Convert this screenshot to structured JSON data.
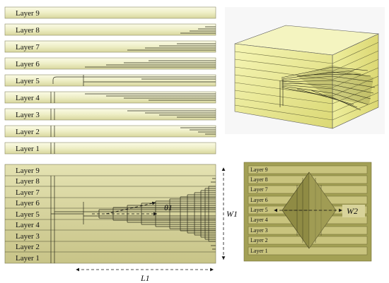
{
  "top_layers": [
    "Layer 9",
    "Layer 8",
    "Layer 7",
    "Layer 6",
    "Layer 5",
    "Layer 4",
    "Layer 3",
    "Layer 2",
    "Layer 1"
  ],
  "stack_layers": [
    "Layer 9",
    "Layer 8",
    "Layer 7",
    "Layer 6",
    "Layer 5",
    "Layer 4",
    "Layer 3",
    "Layer 2",
    "Layer 1"
  ],
  "front_layers": [
    "Layer 9",
    "Layer 8",
    "Layer 7",
    "Layer 6",
    "Layer 5",
    "Layer 4",
    "Layer 3",
    "Layer 2",
    "Layer 1"
  ],
  "symbols": {
    "theta1": "θ1",
    "W1": "W1",
    "W2": "W2",
    "L1": "L1"
  },
  "colors": {
    "strip_light": "#f2f2cf",
    "strip_dark": "#c9c48a",
    "stack_fill": "#d6d49a",
    "front_bg": "#a3a055",
    "front_layer": "#c7c27b",
    "cube_face": "#efef8a",
    "edge": "#2a2a1a"
  }
}
